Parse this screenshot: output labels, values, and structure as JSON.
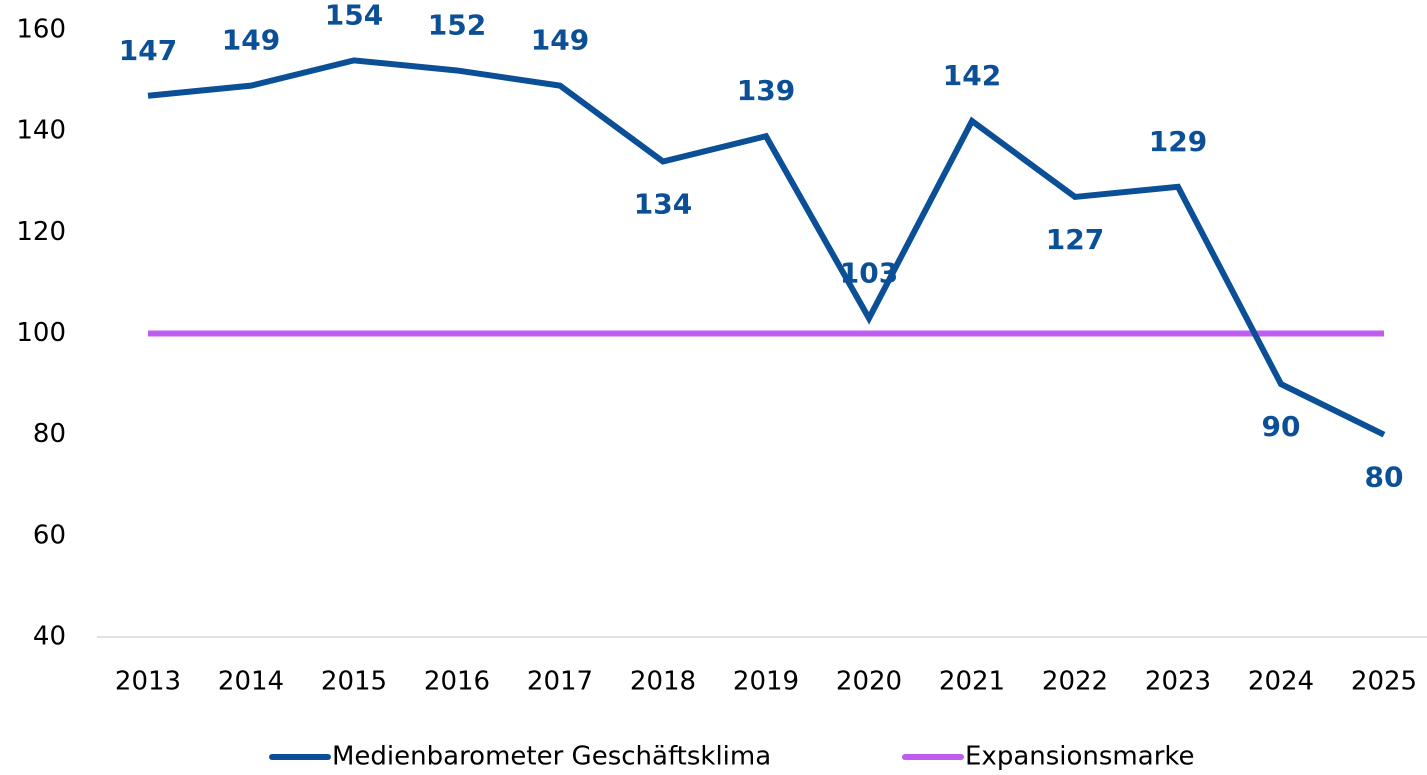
{
  "chart_data": {
    "type": "line",
    "categories": [
      "2013",
      "2014",
      "2015",
      "2016",
      "2017",
      "2018",
      "2019",
      "2020",
      "2021",
      "2022",
      "2023",
      "2024",
      "2025"
    ],
    "series": [
      {
        "name": "Medienbarometer Geschäftsklima",
        "color": "#0b4f97",
        "values": [
          147,
          149,
          154,
          152,
          149,
          134,
          139,
          103,
          142,
          127,
          129,
          90,
          80
        ],
        "data_labels": true
      },
      {
        "name": "Expansionsmarke",
        "color": "#c15cf0",
        "values": [
          100,
          100,
          100,
          100,
          100,
          100,
          100,
          100,
          100,
          100,
          100,
          100,
          100
        ],
        "data_labels": false
      }
    ],
    "ylim": [
      40,
      160
    ],
    "yticks": [
      40,
      60,
      80,
      100,
      120,
      140,
      160
    ],
    "grid": false,
    "legend": "bottom"
  }
}
